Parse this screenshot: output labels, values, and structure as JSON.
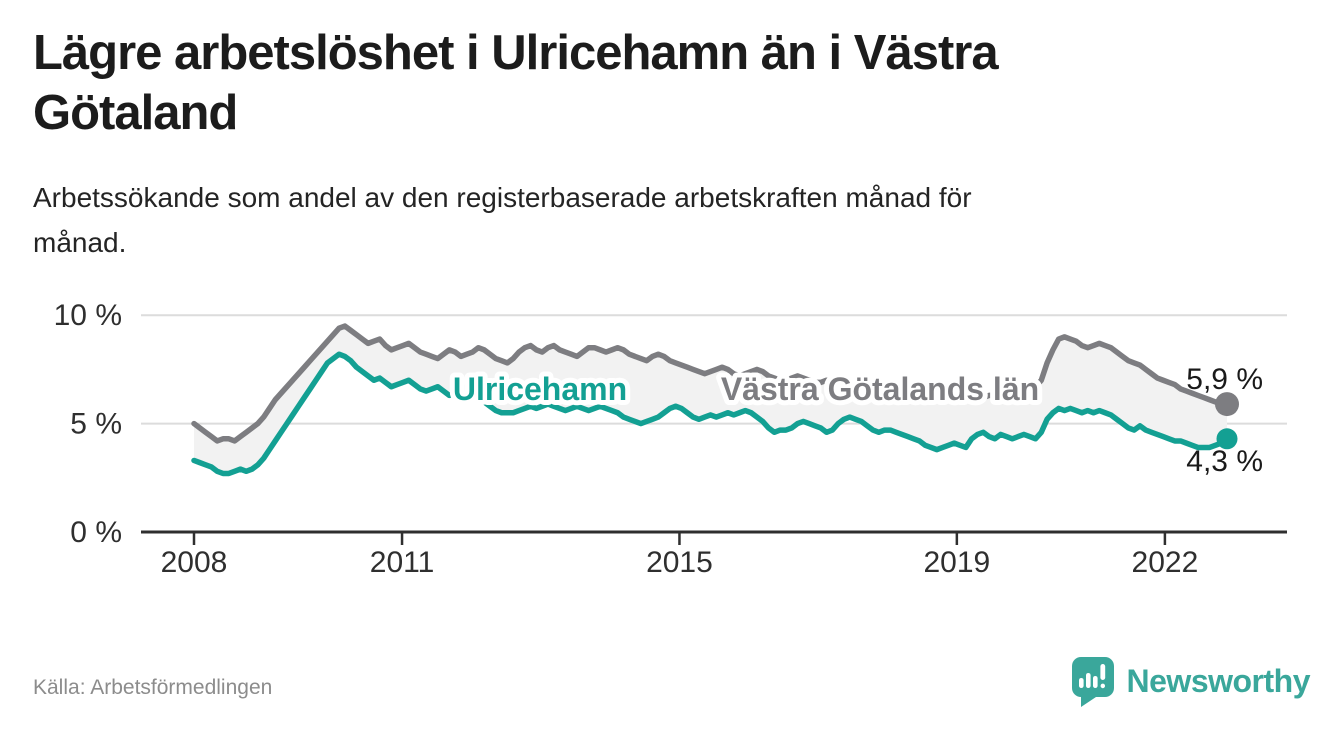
{
  "header": {
    "title": "Lägre arbetslöshet i Ulricehamn än i Västra\nGötaland",
    "subtitle": "Arbetssökande som andel av den registerbaserade arbetskraften månad för\nmånad."
  },
  "footer": {
    "source": "Källa: Arbetsförmedlingen",
    "brand": "Newsworthy"
  },
  "colors": {
    "accent_teal": "#13a093",
    "line_gray": "#7d7d81",
    "area_fill": "#f2f2f2",
    "gridline": "#dcdcdc",
    "axis": "#2f2f2f",
    "tick_text": "#2f2f2f",
    "value_text": "#1a1a1a",
    "source_text": "#8c8c8c",
    "brand_teal": "#3aa79b"
  },
  "chart_data": {
    "type": "line",
    "title": "",
    "xlabel": "",
    "ylabel": "",
    "x_start": "2008-01",
    "x_end": "2022-11",
    "x_interval": "monthly",
    "ylim": [
      0,
      10.5
    ],
    "grid": "horizontal",
    "legend_position": "inline-labels",
    "xticks": [
      {
        "label": "2008",
        "year": 2008
      },
      {
        "label": "2011",
        "year": 2011
      },
      {
        "label": "2015",
        "year": 2015
      },
      {
        "label": "2019",
        "year": 2019
      },
      {
        "label": "2022",
        "year": 2022
      }
    ],
    "yticks": [
      {
        "label": "0 %",
        "value": 0
      },
      {
        "label": "5 %",
        "value": 5
      },
      {
        "label": "10 %",
        "value": 10
      }
    ],
    "series": [
      {
        "name": "Västra Götalands län",
        "color": "#7d7d81",
        "end_label": "5,9 %",
        "end_value": 5.9,
        "values": [
          5.0,
          4.8,
          4.6,
          4.4,
          4.2,
          4.3,
          4.3,
          4.2,
          4.4,
          4.6,
          4.8,
          5.0,
          5.3,
          5.7,
          6.1,
          6.4,
          6.7,
          7.0,
          7.3,
          7.6,
          7.9,
          8.2,
          8.5,
          8.8,
          9.1,
          9.4,
          9.5,
          9.3,
          9.1,
          8.9,
          8.7,
          8.8,
          8.9,
          8.6,
          8.4,
          8.5,
          8.6,
          8.7,
          8.5,
          8.3,
          8.2,
          8.1,
          8.0,
          8.2,
          8.4,
          8.3,
          8.1,
          8.2,
          8.3,
          8.5,
          8.4,
          8.2,
          8.0,
          7.9,
          7.8,
          8.0,
          8.3,
          8.5,
          8.6,
          8.4,
          8.3,
          8.5,
          8.6,
          8.4,
          8.3,
          8.2,
          8.1,
          8.3,
          8.5,
          8.5,
          8.4,
          8.3,
          8.4,
          8.5,
          8.4,
          8.2,
          8.1,
          8.0,
          7.9,
          8.1,
          8.2,
          8.1,
          7.9,
          7.8,
          7.7,
          7.6,
          7.5,
          7.4,
          7.3,
          7.4,
          7.5,
          7.6,
          7.5,
          7.3,
          7.2,
          7.3,
          7.4,
          7.5,
          7.4,
          7.2,
          7.1,
          7.0,
          7.0,
          7.1,
          7.2,
          7.1,
          7.0,
          6.9,
          6.9,
          7.0,
          6.9,
          6.8,
          6.7,
          6.6,
          6.6,
          6.7,
          6.8,
          6.7,
          6.6,
          6.5,
          6.5,
          6.6,
          6.5,
          6.4,
          6.3,
          6.2,
          6.2,
          6.3,
          6.4,
          6.3,
          6.2,
          6.2,
          6.3,
          6.4,
          6.3,
          6.2,
          6.2,
          6.3,
          6.3,
          6.4,
          6.5,
          6.5,
          6.4,
          6.5,
          6.6,
          6.7,
          7.0,
          7.8,
          8.4,
          8.9,
          9.0,
          8.9,
          8.8,
          8.6,
          8.5,
          8.6,
          8.7,
          8.6,
          8.5,
          8.3,
          8.1,
          7.9,
          7.8,
          7.7,
          7.5,
          7.3,
          7.1,
          7.0,
          6.9,
          6.8,
          6.6,
          6.5,
          6.4,
          6.3,
          6.2,
          6.1,
          6.0,
          5.9,
          5.9
        ]
      },
      {
        "name": "Ulricehamn",
        "color": "#13a093",
        "end_label": "4,3 %",
        "end_value": 4.3,
        "values": [
          3.3,
          3.2,
          3.1,
          3.0,
          2.8,
          2.7,
          2.7,
          2.8,
          2.9,
          2.8,
          2.9,
          3.1,
          3.4,
          3.8,
          4.2,
          4.6,
          5.0,
          5.4,
          5.8,
          6.2,
          6.6,
          7.0,
          7.4,
          7.8,
          8.0,
          8.2,
          8.1,
          7.9,
          7.6,
          7.4,
          7.2,
          7.0,
          7.1,
          6.9,
          6.7,
          6.8,
          6.9,
          7.0,
          6.8,
          6.6,
          6.5,
          6.6,
          6.7,
          6.5,
          6.3,
          6.4,
          6.6,
          6.7,
          6.5,
          6.2,
          6.0,
          5.8,
          5.6,
          5.5,
          5.5,
          5.5,
          5.6,
          5.7,
          5.8,
          5.7,
          5.8,
          5.9,
          5.8,
          5.7,
          5.6,
          5.7,
          5.8,
          5.7,
          5.6,
          5.7,
          5.8,
          5.7,
          5.6,
          5.5,
          5.3,
          5.2,
          5.1,
          5.0,
          5.1,
          5.2,
          5.3,
          5.5,
          5.7,
          5.8,
          5.7,
          5.5,
          5.3,
          5.2,
          5.3,
          5.4,
          5.3,
          5.4,
          5.5,
          5.4,
          5.5,
          5.6,
          5.5,
          5.3,
          5.1,
          4.8,
          4.6,
          4.7,
          4.7,
          4.8,
          5.0,
          5.1,
          5.0,
          4.9,
          4.8,
          4.6,
          4.7,
          5.0,
          5.2,
          5.3,
          5.2,
          5.1,
          4.9,
          4.7,
          4.6,
          4.7,
          4.7,
          4.6,
          4.5,
          4.4,
          4.3,
          4.2,
          4.0,
          3.9,
          3.8,
          3.9,
          4.0,
          4.1,
          4.0,
          3.9,
          4.3,
          4.5,
          4.6,
          4.4,
          4.3,
          4.5,
          4.4,
          4.3,
          4.4,
          4.5,
          4.4,
          4.3,
          4.6,
          5.2,
          5.5,
          5.7,
          5.6,
          5.7,
          5.6,
          5.5,
          5.6,
          5.5,
          5.6,
          5.5,
          5.4,
          5.2,
          5.0,
          4.8,
          4.7,
          4.9,
          4.7,
          4.6,
          4.5,
          4.4,
          4.3,
          4.2,
          4.2,
          4.1,
          4.0,
          3.9,
          3.9,
          3.9,
          4.0,
          4.1,
          4.3
        ]
      }
    ]
  }
}
